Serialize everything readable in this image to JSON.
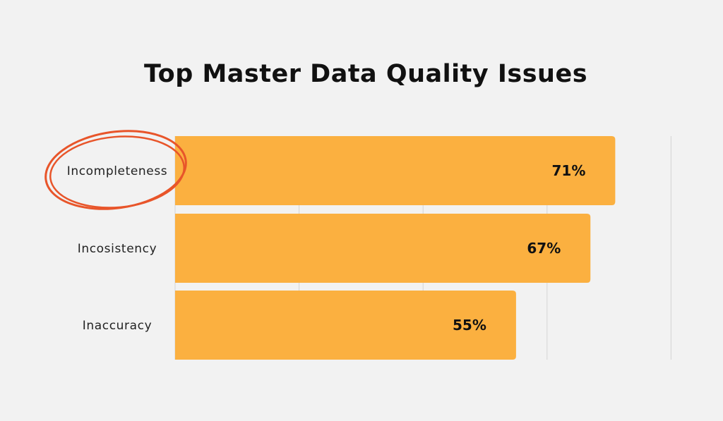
{
  "title": "Top Master Data Quality Issues",
  "colors": {
    "background": "#f2f2f2",
    "bar": "#fbb040",
    "grid": "#d4d4d4",
    "highlight_circle": "#e8552a",
    "text": "#111111"
  },
  "chart_data": {
    "type": "bar",
    "orientation": "horizontal",
    "categories": [
      "Incompleteness",
      "Incosistency",
      "Inaccuracy"
    ],
    "values": [
      71,
      67,
      55
    ],
    "value_labels": [
      "71%",
      "67%",
      "55%"
    ],
    "xlim": [
      0,
      80
    ],
    "grid": true,
    "highlighted_category": "Incompleteness"
  }
}
